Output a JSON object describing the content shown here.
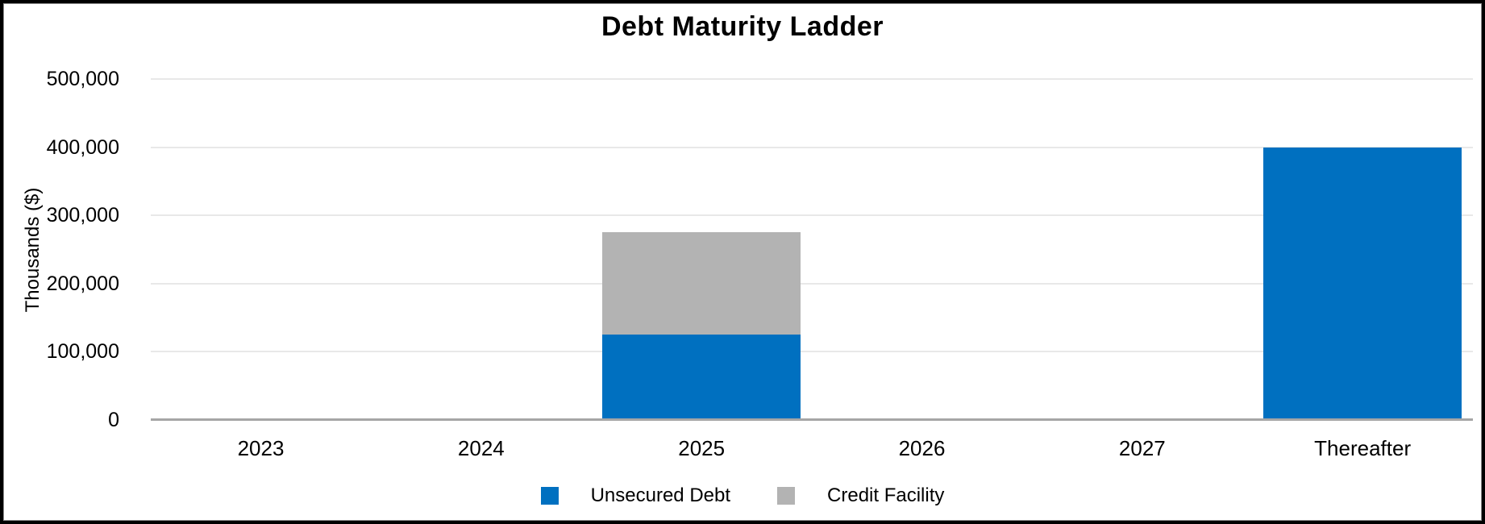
{
  "chart_data": {
    "type": "bar",
    "stacked": true,
    "title": "Debt Maturity Ladder",
    "xlabel": "",
    "ylabel": "Thousands ($)",
    "categories": [
      "2023",
      "2024",
      "2025",
      "2026",
      "2027",
      "Thereafter"
    ],
    "series": [
      {
        "name": "Unsecured Debt",
        "color": "#0070C0",
        "values": [
          0,
          0,
          125000,
          0,
          0,
          400000
        ]
      },
      {
        "name": "Credit Facility",
        "color": "#B3B3B3",
        "values": [
          0,
          0,
          150000,
          0,
          0,
          0
        ]
      }
    ],
    "ylim": [
      0,
      500000
    ],
    "yticks": [
      0,
      100000,
      200000,
      300000,
      400000,
      500000
    ],
    "ytick_labels": [
      "0",
      "100,000",
      "200,000",
      "300,000",
      "400,000",
      "500,000"
    ],
    "grid": "horizontal",
    "legend_position": "bottom",
    "colors": {
      "unsecured_debt": "#0070C0",
      "credit_facility": "#B3B3B3",
      "axis_line": "#A6A6A6",
      "gridline": "#E8E8E8",
      "text": "#000000",
      "frame_border": "#000000"
    }
  }
}
